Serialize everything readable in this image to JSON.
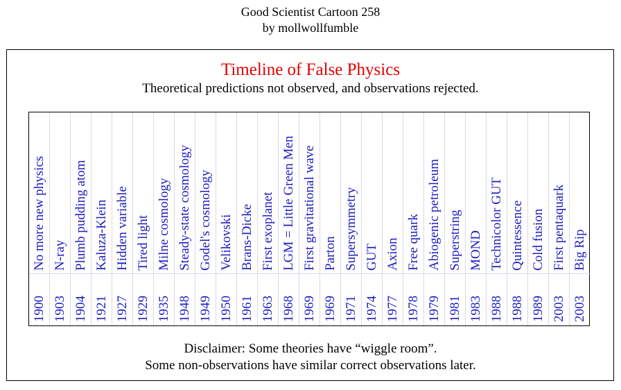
{
  "header": {
    "line1": "Good Scientist Cartoon 258",
    "line2": "by mollwollfumble"
  },
  "title": "Timeline of False Physics",
  "subtitle": "Theoretical predictions not observed, and observations rejected.",
  "entries": [
    {
      "label": "No more new physics",
      "year": "1900"
    },
    {
      "label": "N-ray",
      "year": "1903"
    },
    {
      "label": "Plumb pudding atom",
      "year": "1904"
    },
    {
      "label": "Kaluza-Klein",
      "year": "1921"
    },
    {
      "label": "Hidden variable",
      "year": "1927"
    },
    {
      "label": "Tired light",
      "year": "1929"
    },
    {
      "label": "Milne cosmology",
      "year": "1935"
    },
    {
      "label": "Steady-state cosmology",
      "year": "1948"
    },
    {
      "label": "Godel's cosmology",
      "year": "1949"
    },
    {
      "label": "Velikovski",
      "year": "1950"
    },
    {
      "label": "Brans-Dicke",
      "year": "1961"
    },
    {
      "label": "First exoplanet",
      "year": "1963"
    },
    {
      "label": "LGM = Little Green Men",
      "year": "1968"
    },
    {
      "label": "First gravitational wave",
      "year": "1969"
    },
    {
      "label": "Parton",
      "year": "1969"
    },
    {
      "label": "Supersymmetry",
      "year": "1971"
    },
    {
      "label": "GUT",
      "year": "1974"
    },
    {
      "label": "Axion",
      "year": "1977"
    },
    {
      "label": "Free quark",
      "year": "1978"
    },
    {
      "label": "Abiogenic petroleum",
      "year": "1979"
    },
    {
      "label": "Superstring",
      "year": "1981"
    },
    {
      "label": "MOND",
      "year": "1983"
    },
    {
      "label": "Technicolor GUT",
      "year": "1988"
    },
    {
      "label": "Quintessence",
      "year": "1988"
    },
    {
      "label": "Cold fusion",
      "year": "1989"
    },
    {
      "label": "First pentaquark",
      "year": "2003"
    },
    {
      "label": "Big Rip",
      "year": "2003"
    }
  ],
  "disclaimer": {
    "line1": "Disclaimer:  Some theories have “wiggle room”.",
    "line2": "Some non-observations have similar correct observations later."
  }
}
